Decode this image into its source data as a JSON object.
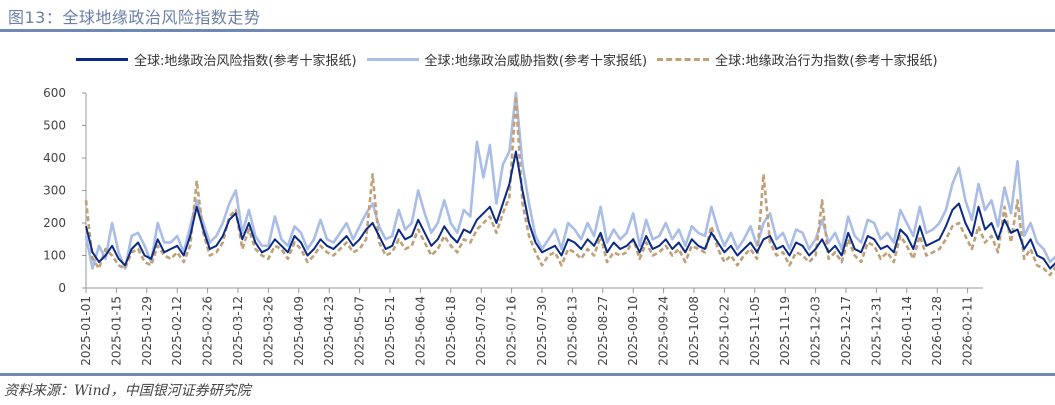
{
  "title": "图13：全球地缘政治风险指数走势",
  "source": "资料来源：Wind，中国银河证券研究院",
  "legend": [
    {
      "label": "全球:地缘政治风险指数(参考十家报纸)",
      "color": "#0b2a87",
      "style": "solid"
    },
    {
      "label": "全球:地缘政治威胁指数(参考十家报纸)",
      "color": "#a9bde6",
      "style": "solid"
    },
    {
      "label": "全球:地缘政治行为指数(参考十家报纸)",
      "color": "#c0a077",
      "style": "dashed"
    }
  ],
  "chart_data": {
    "type": "line",
    "title": "全球地缘政治风险指数走势",
    "xlabel": "",
    "ylabel": "",
    "ylim": [
      0,
      600
    ],
    "yticks": [
      0,
      100,
      200,
      300,
      400,
      500,
      600
    ],
    "grid": false,
    "legend_position": "top",
    "xtick_labels": [
      "2025-01-01",
      "2025-01-15",
      "2025-01-29",
      "2025-02-12",
      "2025-02-26",
      "2025-03-12",
      "2025-03-26",
      "2025-04-09",
      "2025-04-23",
      "2025-05-07",
      "2025-05-21",
      "2025-06-04",
      "2025-06-18",
      "2025-07-02",
      "2025-07-16",
      "2025-07-30",
      "2025-08-13",
      "2025-08-27",
      "2025-09-10",
      "2025-09-24",
      "2025-10-08",
      "2025-10-22",
      "2025-11-05",
      "2025-11-19",
      "2025-12-03",
      "2025-12-17",
      "2025-12-31",
      "2026-01-14",
      "2026-01-28",
      "2026-02-11"
    ],
    "x_start": "2025-01-01",
    "x_step_days": 3,
    "series": [
      {
        "name": "全球:地缘政治风险指数(参考十家报纸)",
        "values": [
          190,
          110,
          80,
          100,
          130,
          90,
          70,
          120,
          140,
          100,
          90,
          150,
          110,
          120,
          130,
          100,
          160,
          250,
          180,
          120,
          130,
          160,
          210,
          230,
          150,
          200,
          140,
          110,
          120,
          150,
          130,
          110,
          160,
          140,
          100,
          120,
          150,
          130,
          120,
          140,
          160,
          130,
          150,
          180,
          200,
          160,
          120,
          130,
          180,
          150,
          160,
          210,
          170,
          130,
          150,
          190,
          160,
          140,
          180,
          170,
          210,
          230,
          250,
          200,
          260,
          320,
          420,
          300,
          200,
          140,
          110,
          120,
          130,
          100,
          150,
          140,
          120,
          150,
          130,
          170,
          110,
          140,
          120,
          130,
          150,
          110,
          160,
          120,
          130,
          150,
          120,
          140,
          110,
          150,
          130,
          120,
          170,
          140,
          110,
          130,
          100,
          120,
          140,
          110,
          150,
          160,
          120,
          130,
          100,
          140,
          130,
          100,
          120,
          150,
          110,
          130,
          100,
          170,
          120,
          110,
          160,
          150,
          120,
          130,
          110,
          180,
          160,
          120,
          190,
          130,
          140,
          150,
          190,
          240,
          260,
          200,
          160,
          250,
          180,
          200,
          150,
          210,
          170,
          180,
          120,
          150,
          100,
          90,
          60,
          80
        ]
      },
      {
        "name": "全球:地缘政治威胁指数(参考十家报纸)",
        "values": [
          160,
          60,
          130,
          90,
          200,
          110,
          60,
          160,
          170,
          130,
          80,
          200,
          140,
          140,
          160,
          110,
          190,
          270,
          200,
          140,
          160,
          200,
          260,
          300,
          170,
          240,
          160,
          130,
          130,
          220,
          150,
          130,
          190,
          170,
          120,
          150,
          210,
          150,
          140,
          170,
          200,
          150,
          190,
          230,
          260,
          190,
          150,
          160,
          240,
          180,
          200,
          300,
          230,
          170,
          200,
          270,
          200,
          170,
          240,
          220,
          450,
          340,
          440,
          260,
          380,
          420,
          600,
          380,
          260,
          160,
          120,
          150,
          180,
          120,
          200,
          180,
          150,
          200,
          160,
          250,
          140,
          180,
          150,
          170,
          230,
          130,
          210,
          150,
          160,
          200,
          150,
          180,
          130,
          190,
          170,
          160,
          250,
          180,
          130,
          170,
          120,
          150,
          190,
          130,
          200,
          230,
          150,
          170,
          120,
          180,
          170,
          120,
          150,
          210,
          140,
          170,
          120,
          220,
          160,
          140,
          210,
          200,
          150,
          170,
          140,
          240,
          200,
          160,
          250,
          170,
          180,
          200,
          240,
          320,
          370,
          270,
          210,
          320,
          240,
          270,
          190,
          310,
          230,
          390,
          160,
          200,
          140,
          120,
          80,
          100
        ]
      },
      {
        "name": "全球:地缘政治行为指数(参考十家报纸)",
        "values": [
          270,
          90,
          60,
          120,
          100,
          70,
          60,
          110,
          120,
          80,
          70,
          130,
          100,
          90,
          110,
          80,
          130,
          330,
          170,
          100,
          110,
          140,
          220,
          240,
          120,
          180,
          120,
          100,
          90,
          130,
          120,
          90,
          140,
          120,
          80,
          100,
          130,
          110,
          100,
          120,
          140,
          110,
          120,
          150,
          350,
          140,
          100,
          110,
          150,
          120,
          130,
          180,
          140,
          100,
          120,
          160,
          130,
          110,
          150,
          140,
          180,
          200,
          220,
          170,
          230,
          280,
          590,
          260,
          160,
          110,
          70,
          100,
          110,
          70,
          120,
          110,
          90,
          120,
          100,
          160,
          80,
          110,
          100,
          110,
          150,
          90,
          140,
          100,
          110,
          130,
          100,
          120,
          80,
          130,
          120,
          110,
          190,
          120,
          80,
          100,
          70,
          100,
          120,
          90,
          350,
          140,
          100,
          110,
          70,
          110,
          100,
          80,
          100,
          270,
          90,
          110,
          80,
          150,
          100,
          80,
          140,
          130,
          90,
          110,
          80,
          160,
          130,
          90,
          160,
          100,
          110,
          120,
          150,
          190,
          200,
          160,
          120,
          190,
          140,
          160,
          110,
          250,
          140,
          270,
          90,
          120,
          70,
          60,
          40,
          70
        ]
      }
    ]
  }
}
